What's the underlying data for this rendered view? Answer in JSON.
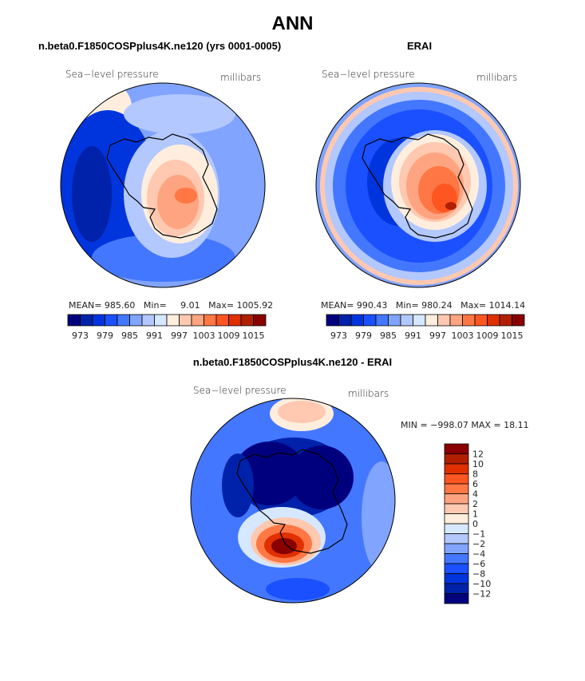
{
  "main_title": "ANN",
  "colors": [
    "#00007f",
    "#0022aa",
    "#0035dd",
    "#1a50ff",
    "#4477ff",
    "#80a4ff",
    "#b2c8ff",
    "#d6e8ff",
    "#ffeedd",
    "#ffc8b0",
    "#ffa480",
    "#ff7744",
    "#ff5520",
    "#e03000",
    "#b02000",
    "#880000"
  ],
  "chart_data": [
    {
      "type": "heatmap",
      "projection": "south-polar-stereographic",
      "title": "n.beta0.F1850COSPplus4K.ne120 (yrs 0001-0005)",
      "left_label": "Sea−level pressure",
      "right_label": "millibars",
      "stats": {
        "mean_label": "MEAN=",
        "mean": "985.60",
        "min_label": "Min=",
        "min": "9.01",
        "max_label": "Max=",
        "max": "1005.92"
      },
      "colorbar_ticks": [
        "973",
        "979",
        "985",
        "991",
        "997",
        "1003",
        "1009",
        "1015"
      ],
      "levels": [
        973,
        976,
        979,
        982,
        985,
        988,
        991,
        994,
        997,
        1000,
        1003,
        1006,
        1009,
        1012,
        1015
      ]
    },
    {
      "type": "heatmap",
      "projection": "south-polar-stereographic",
      "title": "ERAI",
      "left_label": "Sea−level pressure",
      "right_label": "millibars",
      "stats": {
        "mean_label": "MEAN=",
        "mean": "990.43",
        "min_label": "Min=",
        "min": "980.24",
        "max_label": "Max=",
        "max": "1014.14"
      },
      "colorbar_ticks": [
        "973",
        "979",
        "985",
        "991",
        "997",
        "1003",
        "1009",
        "1015"
      ],
      "levels": [
        973,
        976,
        979,
        982,
        985,
        988,
        991,
        994,
        997,
        1000,
        1003,
        1006,
        1009,
        1012,
        1015
      ]
    },
    {
      "type": "heatmap",
      "projection": "south-polar-stereographic",
      "title": "n.beta0.F1850COSPplus4K.ne120 - ERAI",
      "left_label": "Sea−level pressure",
      "right_label": "millibars",
      "stats_text": "MIN = −998.07 MAX =  18.11",
      "colorbar_ticks": [
        "12",
        "10",
        "8",
        "6",
        "4",
        "2",
        "1",
        "0",
        "−1",
        "−2",
        "−4",
        "−6",
        "−8",
        "−10",
        "−12"
      ],
      "levels": [
        12,
        10,
        8,
        6,
        4,
        2,
        1,
        0,
        -1,
        -2,
        -4,
        -6,
        -8,
        -10,
        -12
      ]
    }
  ]
}
